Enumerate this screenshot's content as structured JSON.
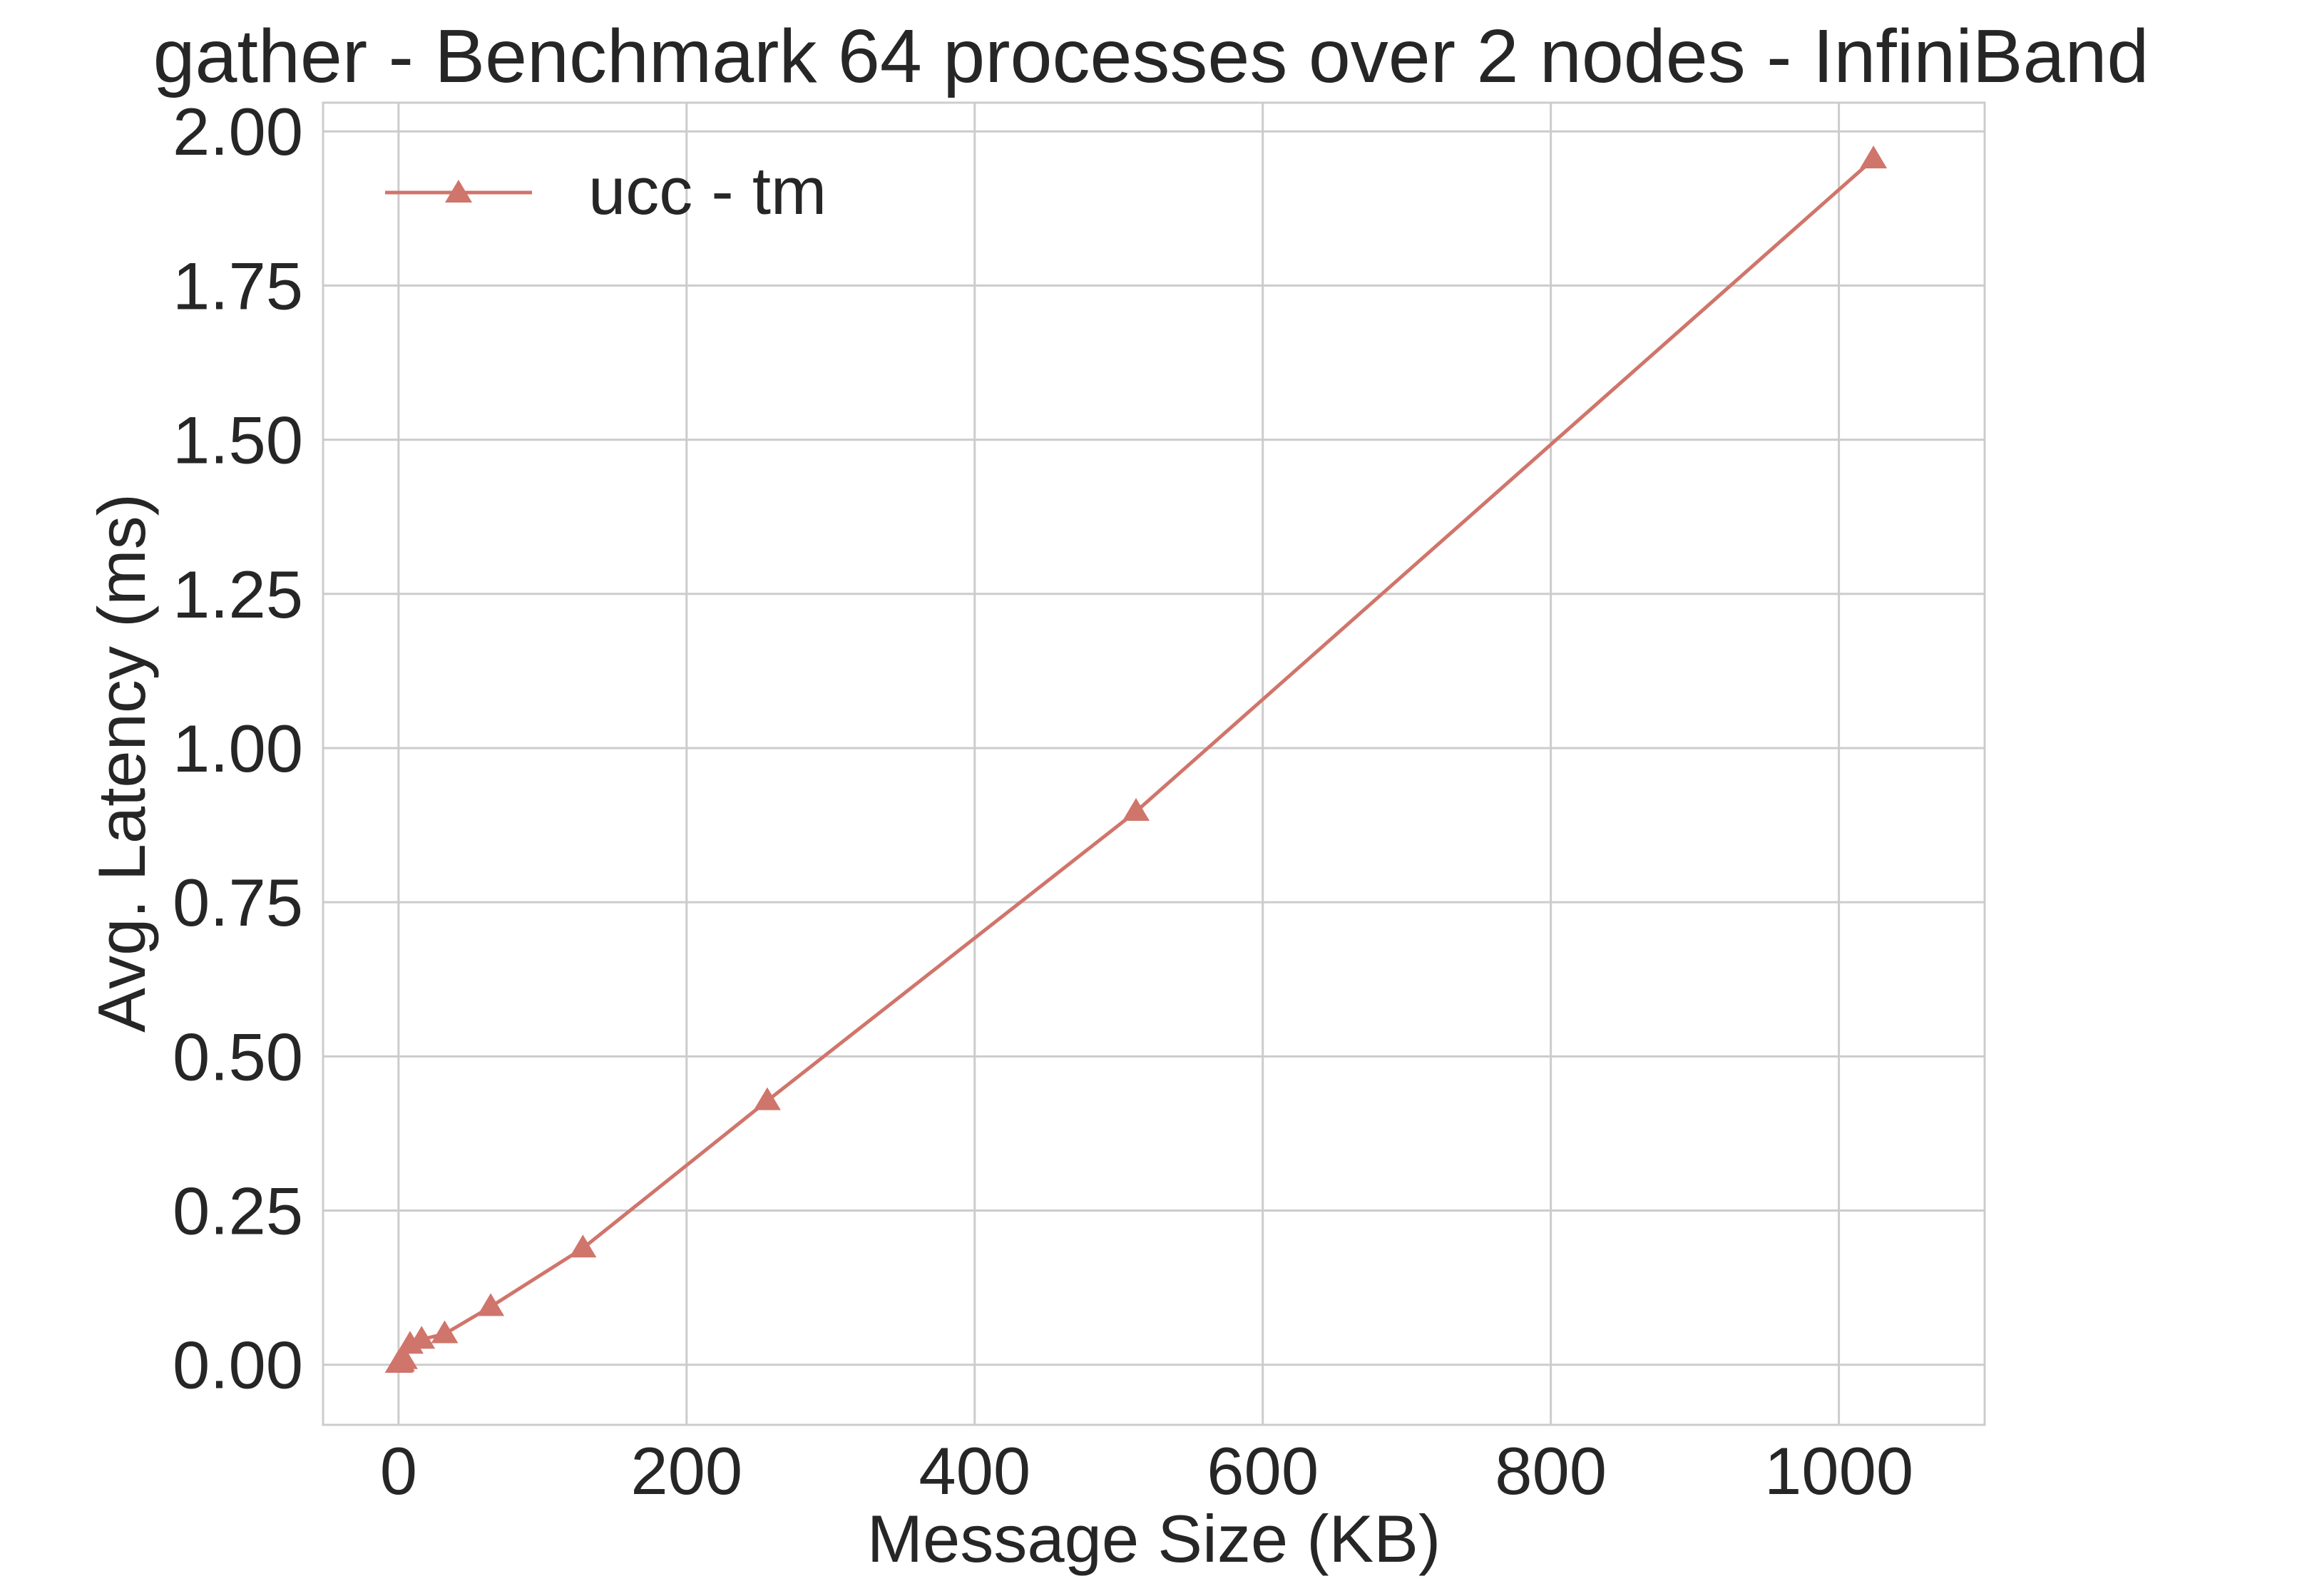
{
  "chart_data": {
    "type": "line",
    "title": "gather - Benchmark 64 processes over 2 nodes - InfiniBand",
    "xlabel": "Message Size (KB)",
    "ylabel": "Avg. Latency (ms)",
    "xlim": [
      -52.4,
      1101.2
    ],
    "ylim": [
      -0.0975,
      2.0465
    ],
    "xticks": [
      0,
      200,
      400,
      600,
      800,
      1000
    ],
    "xtick_labels": [
      "0",
      "200",
      "400",
      "600",
      "800",
      "1000"
    ],
    "yticks": [
      0.0,
      0.25,
      0.5,
      0.75,
      1.0,
      1.25,
      1.5,
      1.75,
      2.0
    ],
    "ytick_labels": [
      "0.00",
      "0.25",
      "0.50",
      "0.75",
      "1.00",
      "1.25",
      "1.50",
      "1.75",
      "2.00"
    ],
    "grid": true,
    "legend_position": "top-left",
    "series": [
      {
        "name": "ucc - tm",
        "color": "#d0756b",
        "marker": "triangle-up",
        "x": [
          0.001,
          0.002,
          0.004,
          0.008,
          0.016,
          0.032,
          0.064,
          0.128,
          0.256,
          0.512,
          1,
          2,
          4,
          8,
          16,
          32,
          64,
          128,
          256,
          512,
          1024
        ],
        "y": [
          0.002,
          0.002,
          0.002,
          0.002,
          0.002,
          0.002,
          0.002,
          0.002,
          0.002,
          0.002,
          0.003,
          0.004,
          0.008,
          0.033,
          0.041,
          0.05,
          0.094,
          0.189,
          0.428,
          0.897,
          1.955
        ]
      }
    ]
  }
}
